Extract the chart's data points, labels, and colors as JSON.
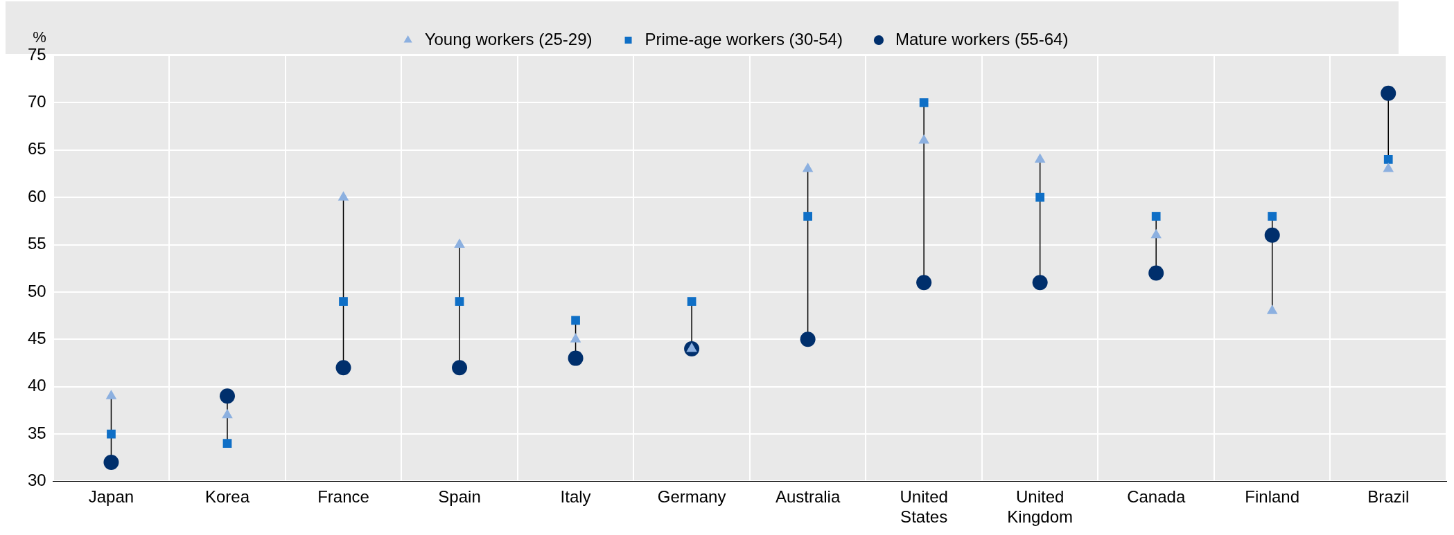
{
  "chart_data": {
    "type": "scatter",
    "ylabel": "%",
    "categories": [
      "Japan",
      "Korea",
      "France",
      "Spain",
      "Italy",
      "Germany",
      "Australia",
      "United States",
      "United Kingdom",
      "Canada",
      "Finland",
      "Brazil"
    ],
    "series": [
      {
        "name": "Young workers (25-29)",
        "color": "#8cb0e0",
        "marker": "triangle",
        "values": [
          39,
          37,
          60,
          55,
          45,
          44,
          63,
          66,
          64,
          56,
          48,
          63
        ]
      },
      {
        "name": "Prime-age workers (30-54)",
        "color": "#0f6fc6",
        "marker": "square",
        "values": [
          35,
          34,
          49,
          49,
          47,
          49,
          58,
          70,
          60,
          58,
          58,
          64
        ]
      },
      {
        "name": "Mature workers (55-64)",
        "color": "#002f6c",
        "marker": "circle",
        "values": [
          32,
          39,
          42,
          42,
          43,
          44,
          45,
          51,
          51,
          52,
          56,
          71
        ]
      }
    ],
    "ylim": [
      30,
      75
    ],
    "yticks": [
      30,
      35,
      40,
      45,
      50,
      55,
      60,
      65,
      70,
      75
    ],
    "grid": true,
    "legend": "top"
  }
}
